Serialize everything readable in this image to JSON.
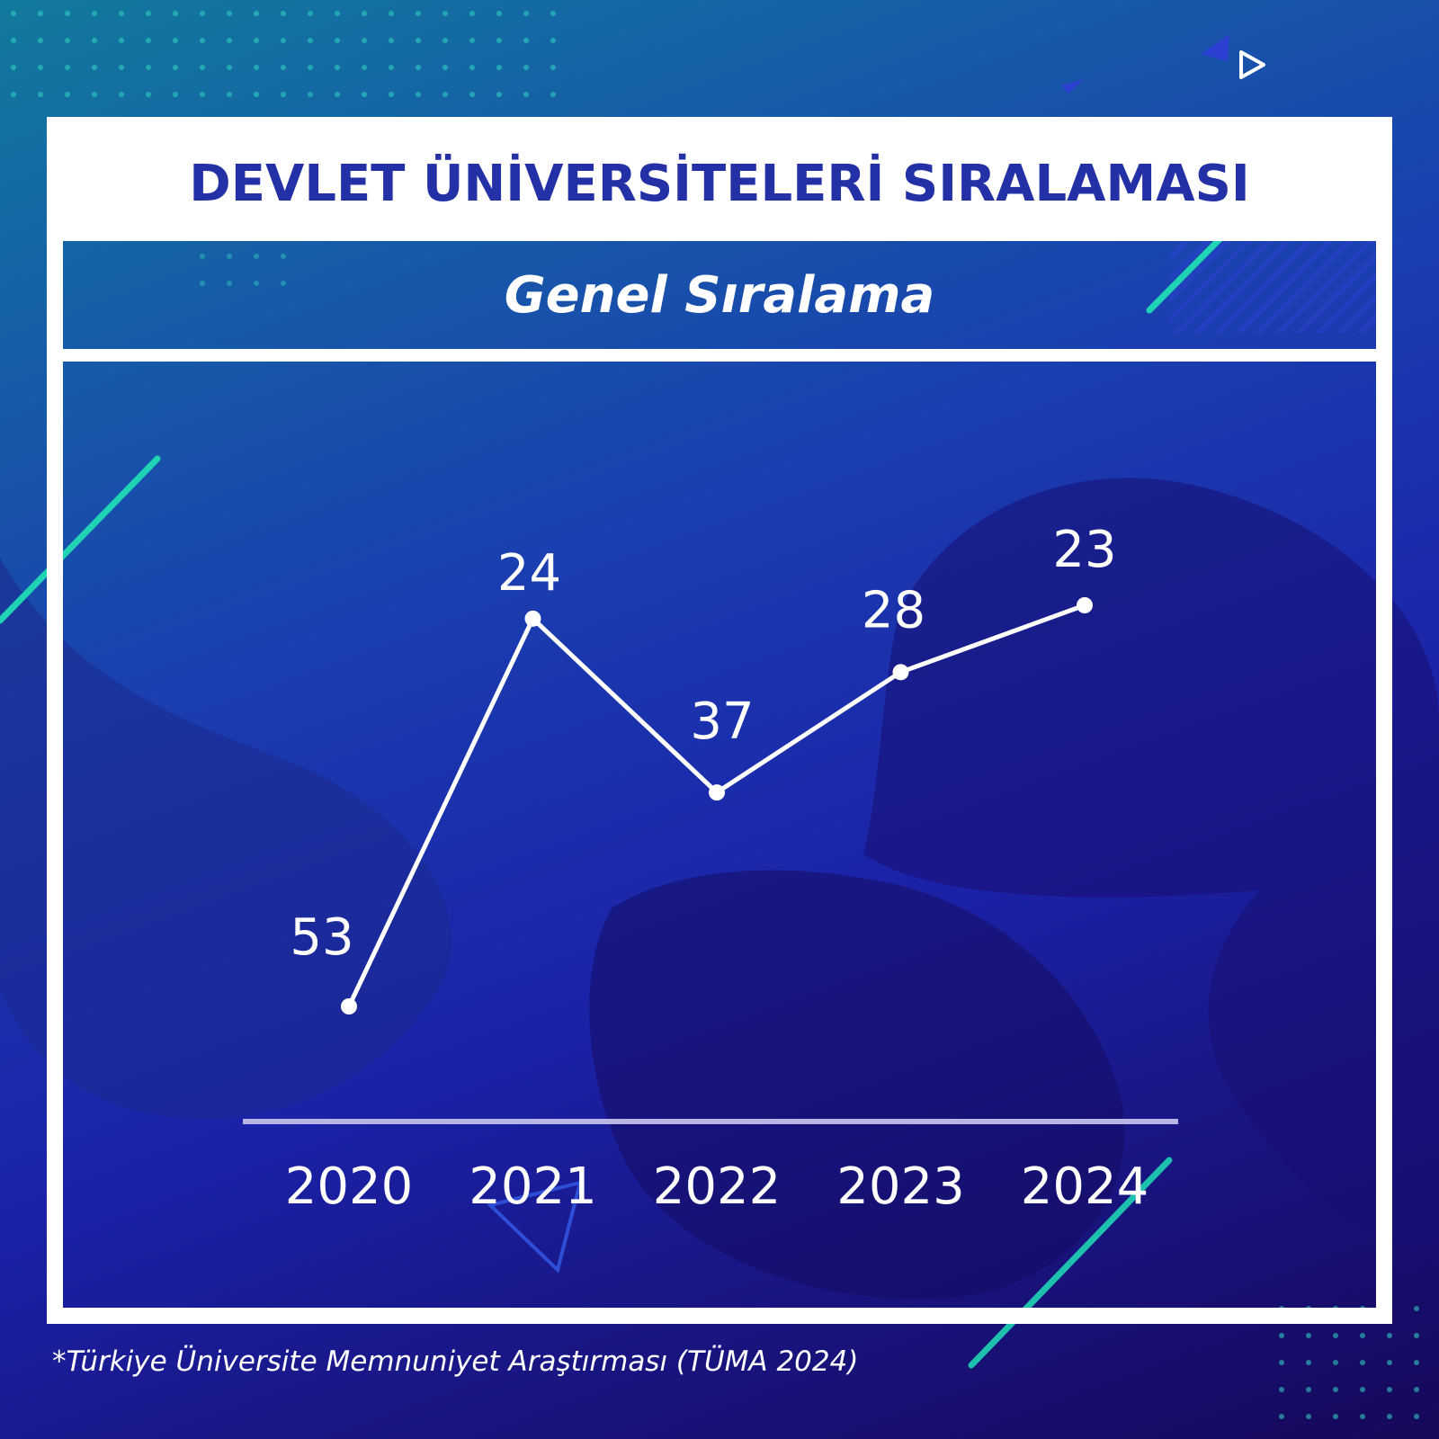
{
  "header": {
    "title": "DEVLET ÜNİVERSİTELERİ SIRALAMASI",
    "subtitle": "Genel Sıralama"
  },
  "footnote": "*Türkiye Üniversite Memnuniyet Araştırması (TÜMA 2024)",
  "colors": {
    "title": "#2430a6",
    "line": "#ffffff",
    "axis": "#b9b6e6",
    "accent": "#1fd3b4"
  },
  "chart_data": {
    "type": "line",
    "title": "Genel Sıralama",
    "xlabel": "",
    "ylabel": "",
    "categories": [
      "2020",
      "2021",
      "2022",
      "2023",
      "2024"
    ],
    "series": [
      {
        "values": [
          53,
          24,
          37,
          28,
          23
        ]
      }
    ],
    "data_labels": [
      "53",
      "24",
      "37",
      "28",
      "23"
    ],
    "y_inverted": true,
    "ylim": [
      20,
      55
    ],
    "grid": false,
    "legend": "none"
  }
}
